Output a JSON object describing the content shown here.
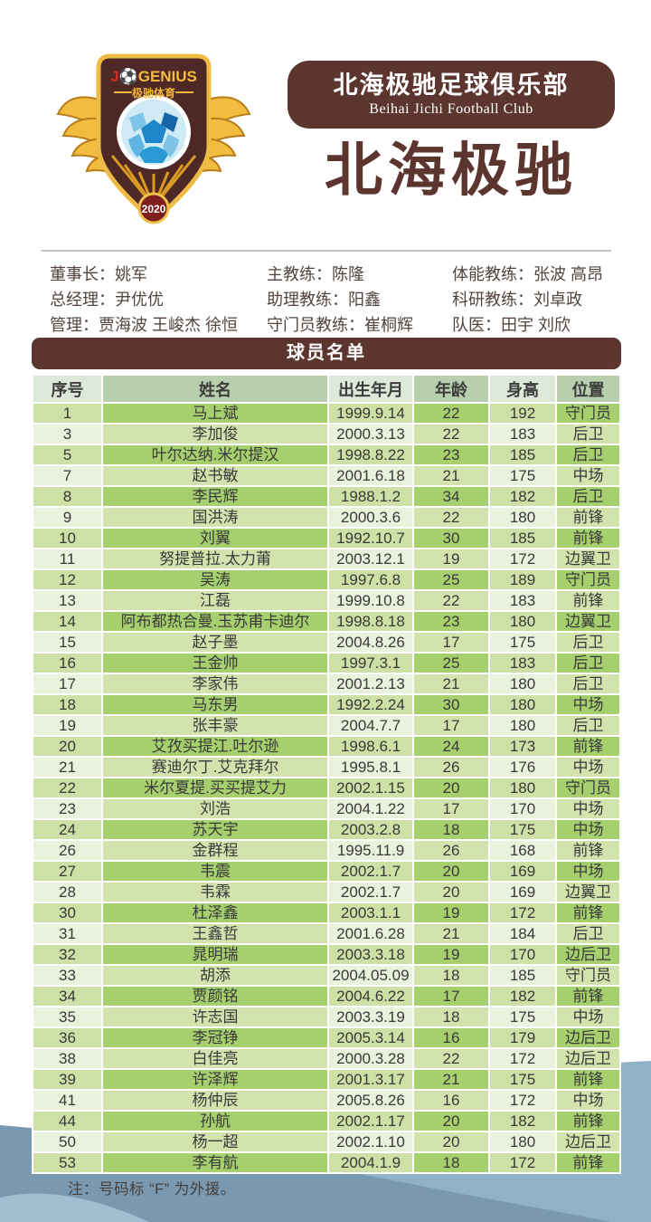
{
  "theme": {
    "brand_brown": "#5b352e",
    "header_light_green": "#dde9d8",
    "header_dark_green": "#b7cfad",
    "row_odd_light": "#cde0a5",
    "row_odd_dark": "#a6cf6e",
    "row_even_light": "#eaf1dd",
    "row_even_dark": "#d3e3ae",
    "wave_light_blue": "#8fb2c8",
    "wave_dark_blue": "#7a99b1",
    "gold": "#f0b63c"
  },
  "logo": {
    "brand_prefix": "J",
    "brand_suffix": "GENIUS",
    "sub_brand": "极驰体育",
    "year": "2020"
  },
  "header": {
    "club_name_cn": "北海极驰足球俱乐部",
    "club_name_en": "Beihai Jichi Football Club",
    "title": "北海极驰"
  },
  "staff": {
    "columns": [
      {
        "lines": [
          "董事长：姚军",
          "总经理：尹优优",
          "管理：贾海波 王峻杰 徐恒"
        ]
      },
      {
        "lines": [
          "主教练：陈隆",
          "助理教练：阳鑫",
          "守门员教练：崔桐辉"
        ]
      },
      {
        "lines": [
          "体能教练：张波 高昂",
          "科研教练：刘卓政",
          "队医：田宇 刘欣"
        ]
      }
    ]
  },
  "section": {
    "title": "球员名单"
  },
  "table": {
    "headers": [
      "序号",
      "姓名",
      "出生年月",
      "年龄",
      "身高",
      "位置"
    ],
    "players": [
      [
        "1",
        "马上斌",
        "1999.9.14",
        "22",
        "192",
        "守门员"
      ],
      [
        "3",
        "李加俊",
        "2000.3.13",
        "22",
        "183",
        "后卫"
      ],
      [
        "5",
        "叶尔达纳.米尔提汉",
        "1998.8.22",
        "23",
        "185",
        "后卫"
      ],
      [
        "7",
        "赵书敏",
        "2001.6.18",
        "21",
        "175",
        "中场"
      ],
      [
        "8",
        "李民辉",
        "1988.1.2",
        "34",
        "182",
        "后卫"
      ],
      [
        "9",
        "国洪涛",
        "2000.3.6",
        "22",
        "180",
        "前锋"
      ],
      [
        "10",
        "刘翼",
        "1992.10.7",
        "30",
        "185",
        "前锋"
      ],
      [
        "11",
        "努提普拉.太力莆",
        "2003.12.1",
        "19",
        "172",
        "边翼卫"
      ],
      [
        "12",
        "吴涛",
        "1997.6.8",
        "25",
        "189",
        "守门员"
      ],
      [
        "13",
        "江磊",
        "1999.10.8",
        "22",
        "183",
        "前锋"
      ],
      [
        "14",
        "阿布都热合曼.玉苏甫卡迪尔",
        "1998.8.18",
        "23",
        "180",
        "边翼卫"
      ],
      [
        "15",
        "赵子墨",
        "2004.8.26",
        "17",
        "175",
        "后卫"
      ],
      [
        "16",
        "王金帅",
        "1997.3.1",
        "25",
        "183",
        "后卫"
      ],
      [
        "17",
        "李家伟",
        "2001.2.13",
        "21",
        "180",
        "后卫"
      ],
      [
        "18",
        "马东男",
        "1992.2.24",
        "30",
        "180",
        "中场"
      ],
      [
        "19",
        "张丰豪",
        "2004.7.7",
        "17",
        "180",
        "后卫"
      ],
      [
        "20",
        "艾孜买提江.吐尔逊",
        "1998.6.1",
        "24",
        "173",
        "前锋"
      ],
      [
        "21",
        "赛迪尔丁.艾克拜尔",
        "1995.8.1",
        "26",
        "176",
        "中场"
      ],
      [
        "22",
        "米尔夏提.买买提艾力",
        "2002.1.15",
        "20",
        "180",
        "守门员"
      ],
      [
        "23",
        "刘浩",
        "2004.1.22",
        "17",
        "170",
        "中场"
      ],
      [
        "24",
        "苏天宇",
        "2003.2.8",
        "18",
        "175",
        "中场"
      ],
      [
        "26",
        "金群程",
        "1995.11.9",
        "26",
        "168",
        "前锋"
      ],
      [
        "27",
        "韦震",
        "2002.1.7",
        "20",
        "169",
        "中场"
      ],
      [
        "28",
        "韦霖",
        "2002.1.7",
        "20",
        "169",
        "边翼卫"
      ],
      [
        "30",
        "杜泽鑫",
        "2003.1.1",
        "19",
        "172",
        "前锋"
      ],
      [
        "31",
        "王鑫哲",
        "2001.6.28",
        "21",
        "184",
        "后卫"
      ],
      [
        "32",
        "晁明瑞",
        "2003.3.18",
        "19",
        "170",
        "边后卫"
      ],
      [
        "33",
        "胡添",
        "2004.05.09",
        "18",
        "185",
        "守门员"
      ],
      [
        "34",
        "贾颜铭",
        "2004.6.22",
        "17",
        "182",
        "前锋"
      ],
      [
        "35",
        "许志国",
        "2003.3.19",
        "18",
        "175",
        "中场"
      ],
      [
        "36",
        "李冠铮",
        "2005.3.14",
        "16",
        "179",
        "边后卫"
      ],
      [
        "38",
        "白佳亮",
        "2000.3.28",
        "22",
        "172",
        "边后卫"
      ],
      [
        "39",
        "许泽辉",
        "2001.3.17",
        "21",
        "175",
        "前锋"
      ],
      [
        "41",
        "杨仲辰",
        "2005.8.26",
        "16",
        "172",
        "中场"
      ],
      [
        "44",
        "孙航",
        "2002.1.17",
        "20",
        "182",
        "前锋"
      ],
      [
        "50",
        "杨一超",
        "2002.1.10",
        "20",
        "180",
        "边后卫"
      ],
      [
        "53",
        "李有航",
        "2004.1.9",
        "18",
        "172",
        "前锋"
      ]
    ]
  },
  "note": "注：号码标 “F” 为外援。"
}
